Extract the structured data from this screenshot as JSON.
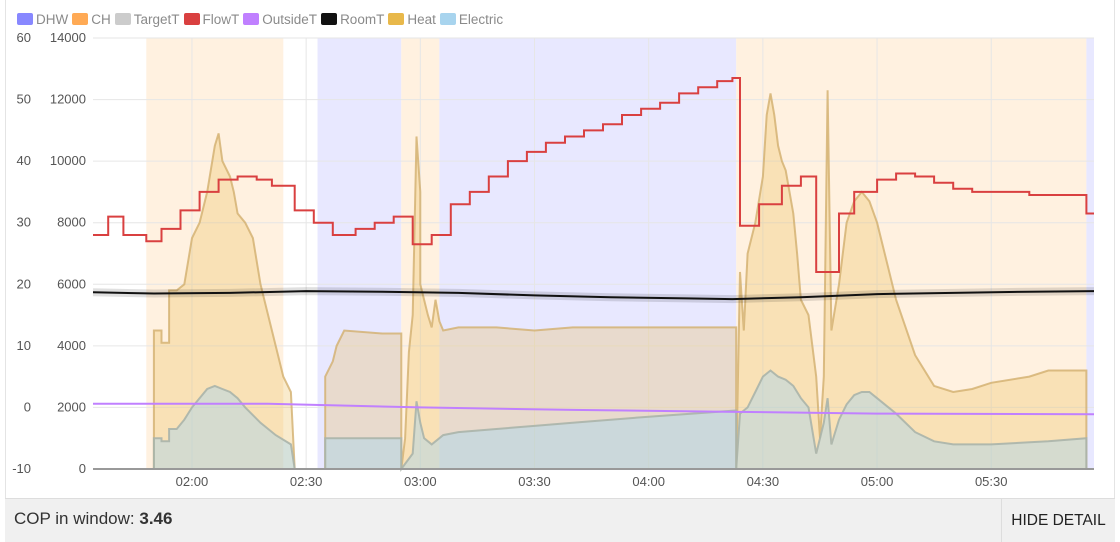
{
  "legend": [
    {
      "key": "dhw",
      "label": "DHW",
      "color": "#8888ff"
    },
    {
      "key": "ch",
      "label": "CH",
      "color": "#ffaa55"
    },
    {
      "key": "target",
      "label": "TargetT",
      "color": "#cccccc"
    },
    {
      "key": "flow",
      "label": "FlowT",
      "color": "#d94040"
    },
    {
      "key": "outside",
      "label": "OutsideT",
      "color": "#c080ff"
    },
    {
      "key": "room",
      "label": "RoomT",
      "color": "#111111"
    },
    {
      "key": "heat",
      "label": "Heat",
      "color": "#e8b84a"
    },
    {
      "key": "elec",
      "label": "Electric",
      "color": "#a8d4ee"
    }
  ],
  "footer": {
    "cop_label": "COP in window: ",
    "cop_value": "3.46",
    "hide_label": "HIDE DETAIL"
  },
  "chart_data": {
    "type": "line",
    "x_ticks": [
      "02:00",
      "02:30",
      "03:00",
      "03:30",
      "04:00",
      "04:30",
      "05:00",
      "05:30"
    ],
    "x_range_minutes": [
      94,
      357
    ],
    "y_left_ticks": [
      60,
      50,
      40,
      30,
      20,
      10,
      0,
      -10
    ],
    "y_left_range": [
      -10,
      60
    ],
    "y_right_ticks": [
      14000,
      12000,
      10000,
      8000,
      6000,
      4000,
      2000,
      0
    ],
    "y_right_range": [
      0,
      14000
    ],
    "grid": true,
    "legend_placement": "top-left",
    "modes": [
      {
        "type": "ch",
        "start": 108,
        "end": 144
      },
      {
        "type": "dhw",
        "start": 153,
        "end": 175
      },
      {
        "type": "ch",
        "start": 175,
        "end": 185
      },
      {
        "type": "dhw",
        "start": 185,
        "end": 263
      },
      {
        "type": "ch",
        "start": 263,
        "end": 355
      },
      {
        "type": "dhw",
        "start": 355,
        "end": 357
      }
    ],
    "series": {
      "flowT": [
        [
          94,
          28
        ],
        [
          98,
          28
        ],
        [
          98,
          31
        ],
        [
          102,
          31
        ],
        [
          102,
          28
        ],
        [
          108,
          28
        ],
        [
          108,
          27
        ],
        [
          112,
          27
        ],
        [
          112,
          29
        ],
        [
          117,
          29
        ],
        [
          117,
          32
        ],
        [
          122,
          32
        ],
        [
          122,
          35
        ],
        [
          127,
          35
        ],
        [
          127,
          37
        ],
        [
          132,
          37
        ],
        [
          132,
          37.5
        ],
        [
          137,
          37.5
        ],
        [
          137,
          37
        ],
        [
          141,
          37
        ],
        [
          141,
          36
        ],
        [
          147,
          36
        ],
        [
          147,
          32
        ],
        [
          152,
          32
        ],
        [
          152,
          30
        ],
        [
          157,
          30
        ],
        [
          157,
          28
        ],
        [
          163,
          28
        ],
        [
          163,
          29
        ],
        [
          168,
          29
        ],
        [
          168,
          30
        ],
        [
          173,
          30
        ],
        [
          173,
          31
        ],
        [
          178,
          31
        ],
        [
          178,
          26.5
        ],
        [
          183,
          26.5
        ],
        [
          183,
          28
        ],
        [
          188,
          28
        ],
        [
          188,
          33
        ],
        [
          193,
          33
        ],
        [
          193,
          35
        ],
        [
          198,
          35
        ],
        [
          198,
          37.5
        ],
        [
          203,
          37.5
        ],
        [
          203,
          40
        ],
        [
          208,
          40
        ],
        [
          208,
          41.5
        ],
        [
          213,
          41.5
        ],
        [
          213,
          43
        ],
        [
          218,
          43
        ],
        [
          218,
          44
        ],
        [
          223,
          44
        ],
        [
          223,
          45
        ],
        [
          228,
          45
        ],
        [
          228,
          46
        ],
        [
          233,
          46
        ],
        [
          233,
          47.5
        ],
        [
          238,
          47.5
        ],
        [
          238,
          48.5
        ],
        [
          243,
          48.5
        ],
        [
          243,
          49.5
        ],
        [
          248,
          49.5
        ],
        [
          248,
          51
        ],
        [
          253,
          51
        ],
        [
          253,
          52
        ],
        [
          258,
          52
        ],
        [
          258,
          53
        ],
        [
          262,
          53
        ],
        [
          262,
          53.5
        ],
        [
          264,
          53.5
        ],
        [
          264,
          29.5
        ],
        [
          269,
          29.5
        ],
        [
          269,
          33
        ],
        [
          275,
          33
        ],
        [
          275,
          36
        ],
        [
          280,
          36
        ],
        [
          280,
          37.5
        ],
        [
          284,
          37.5
        ],
        [
          284,
          22
        ],
        [
          290,
          22
        ],
        [
          290,
          31.5
        ],
        [
          294,
          31.5
        ],
        [
          294,
          35
        ],
        [
          300,
          35
        ],
        [
          300,
          37
        ],
        [
          305,
          37
        ],
        [
          305,
          38
        ],
        [
          310,
          38
        ],
        [
          310,
          37.5
        ],
        [
          315,
          37.5
        ],
        [
          315,
          36.5
        ],
        [
          320,
          36.5
        ],
        [
          320,
          35.5
        ],
        [
          325,
          35.5
        ],
        [
          325,
          35
        ],
        [
          340,
          35
        ],
        [
          340,
          34.5
        ],
        [
          355,
          34.5
        ],
        [
          355,
          31.5
        ],
        [
          357,
          31.5
        ]
      ],
      "roomT": [
        [
          94,
          18.7
        ],
        [
          110,
          18.5
        ],
        [
          130,
          18.6
        ],
        [
          150,
          18.9
        ],
        [
          170,
          18.8
        ],
        [
          190,
          18.6
        ],
        [
          210,
          18.2
        ],
        [
          230,
          17.9
        ],
        [
          250,
          17.7
        ],
        [
          262,
          17.6
        ],
        [
          280,
          17.9
        ],
        [
          300,
          18.4
        ],
        [
          320,
          18.6
        ],
        [
          340,
          18.8
        ],
        [
          357,
          18.9
        ]
      ],
      "outsideT": [
        [
          94,
          0.6
        ],
        [
          140,
          0.6
        ],
        [
          180,
          0
        ],
        [
          220,
          -0.4
        ],
        [
          260,
          -0.7
        ],
        [
          300,
          -1
        ],
        [
          357,
          -1.1
        ]
      ],
      "targetT": [
        [
          94,
          -10
        ],
        [
          357,
          -10
        ]
      ],
      "heat": [
        [
          94,
          0
        ],
        [
          108,
          0
        ],
        [
          110,
          0
        ],
        [
          110,
          4500
        ],
        [
          112,
          4500
        ],
        [
          112,
          4100
        ],
        [
          114,
          4100
        ],
        [
          114,
          5800
        ],
        [
          116,
          5800
        ],
        [
          118,
          6000
        ],
        [
          120,
          7500
        ],
        [
          122,
          8000
        ],
        [
          124,
          9000
        ],
        [
          126,
          10500
        ],
        [
          127,
          10900
        ],
        [
          128,
          10000
        ],
        [
          130,
          9500
        ],
        [
          131,
          9000
        ],
        [
          132,
          8300
        ],
        [
          134,
          8000
        ],
        [
          136,
          7500
        ],
        [
          138,
          6000
        ],
        [
          140,
          5000
        ],
        [
          142,
          4000
        ],
        [
          144,
          3000
        ],
        [
          146,
          2500
        ],
        [
          147,
          0
        ],
        [
          155,
          0
        ],
        [
          155,
          3000
        ],
        [
          157,
          3500
        ],
        [
          158,
          4000
        ],
        [
          160,
          4500
        ],
        [
          170,
          4400
        ],
        [
          175,
          4400
        ],
        [
          175,
          0
        ],
        [
          176,
          1000
        ],
        [
          177,
          3800
        ],
        [
          178,
          5000
        ],
        [
          179,
          10800
        ],
        [
          180,
          9000
        ],
        [
          180,
          6000
        ],
        [
          181,
          5500
        ],
        [
          182,
          5000
        ],
        [
          183,
          4600
        ],
        [
          184,
          5500
        ],
        [
          185,
          4800
        ],
        [
          186,
          4500
        ],
        [
          190,
          4600
        ],
        [
          200,
          4600
        ],
        [
          210,
          4500
        ],
        [
          220,
          4600
        ],
        [
          240,
          4600
        ],
        [
          263,
          4600
        ],
        [
          263,
          0
        ],
        [
          264,
          6400
        ],
        [
          265,
          4500
        ],
        [
          266,
          7000
        ],
        [
          268,
          8000
        ],
        [
          270,
          9500
        ],
        [
          271,
          11500
        ],
        [
          272,
          12200
        ],
        [
          273,
          11500
        ],
        [
          274,
          10500
        ],
        [
          275,
          10000
        ],
        [
          276,
          9700
        ],
        [
          277,
          9000
        ],
        [
          278,
          8300
        ],
        [
          279,
          7000
        ],
        [
          280,
          5500
        ],
        [
          282,
          5000
        ],
        [
          284,
          3000
        ],
        [
          285,
          1000
        ],
        [
          286,
          3000
        ],
        [
          287,
          12300
        ],
        [
          288,
          4500
        ],
        [
          290,
          6000
        ],
        [
          292,
          8000
        ],
        [
          294,
          8700
        ],
        [
          296,
          9000
        ],
        [
          298,
          8700
        ],
        [
          300,
          8000
        ],
        [
          302,
          7000
        ],
        [
          305,
          5500
        ],
        [
          310,
          3700
        ],
        [
          315,
          2700
        ],
        [
          320,
          2500
        ],
        [
          325,
          2600
        ],
        [
          330,
          2800
        ],
        [
          340,
          3000
        ],
        [
          345,
          3200
        ],
        [
          355,
          3200
        ],
        [
          355,
          0
        ],
        [
          357,
          0
        ]
      ],
      "elec": [
        [
          94,
          0
        ],
        [
          108,
          0
        ],
        [
          110,
          0
        ],
        [
          110,
          1000
        ],
        [
          112,
          1000
        ],
        [
          112,
          900
        ],
        [
          114,
          900
        ],
        [
          114,
          1300
        ],
        [
          116,
          1300
        ],
        [
          118,
          1600
        ],
        [
          120,
          2000
        ],
        [
          124,
          2600
        ],
        [
          126,
          2700
        ],
        [
          128,
          2600
        ],
        [
          130,
          2500
        ],
        [
          132,
          2300
        ],
        [
          134,
          2000
        ],
        [
          138,
          1500
        ],
        [
          142,
          1100
        ],
        [
          146,
          800
        ],
        [
          147,
          0
        ],
        [
          155,
          0
        ],
        [
          155,
          1000
        ],
        [
          160,
          1000
        ],
        [
          175,
          1000
        ],
        [
          175,
          0
        ],
        [
          178,
          500
        ],
        [
          179,
          2200
        ],
        [
          180,
          1500
        ],
        [
          181,
          1000
        ],
        [
          183,
          800
        ],
        [
          186,
          1100
        ],
        [
          190,
          1200
        ],
        [
          200,
          1300
        ],
        [
          210,
          1400
        ],
        [
          220,
          1500
        ],
        [
          240,
          1700
        ],
        [
          263,
          1900
        ],
        [
          263,
          0
        ],
        [
          264,
          1800
        ],
        [
          266,
          2000
        ],
        [
          268,
          2500
        ],
        [
          270,
          3000
        ],
        [
          272,
          3200
        ],
        [
          274,
          3000
        ],
        [
          276,
          2900
        ],
        [
          278,
          2700
        ],
        [
          280,
          2300
        ],
        [
          282,
          2000
        ],
        [
          284,
          500
        ],
        [
          286,
          1500
        ],
        [
          287,
          2300
        ],
        [
          288,
          800
        ],
        [
          290,
          1600
        ],
        [
          292,
          2100
        ],
        [
          294,
          2400
        ],
        [
          296,
          2500
        ],
        [
          298,
          2500
        ],
        [
          300,
          2300
        ],
        [
          305,
          1800
        ],
        [
          310,
          1200
        ],
        [
          315,
          900
        ],
        [
          320,
          800
        ],
        [
          330,
          800
        ],
        [
          345,
          900
        ],
        [
          355,
          1000
        ],
        [
          355,
          0
        ],
        [
          357,
          0
        ]
      ]
    }
  }
}
